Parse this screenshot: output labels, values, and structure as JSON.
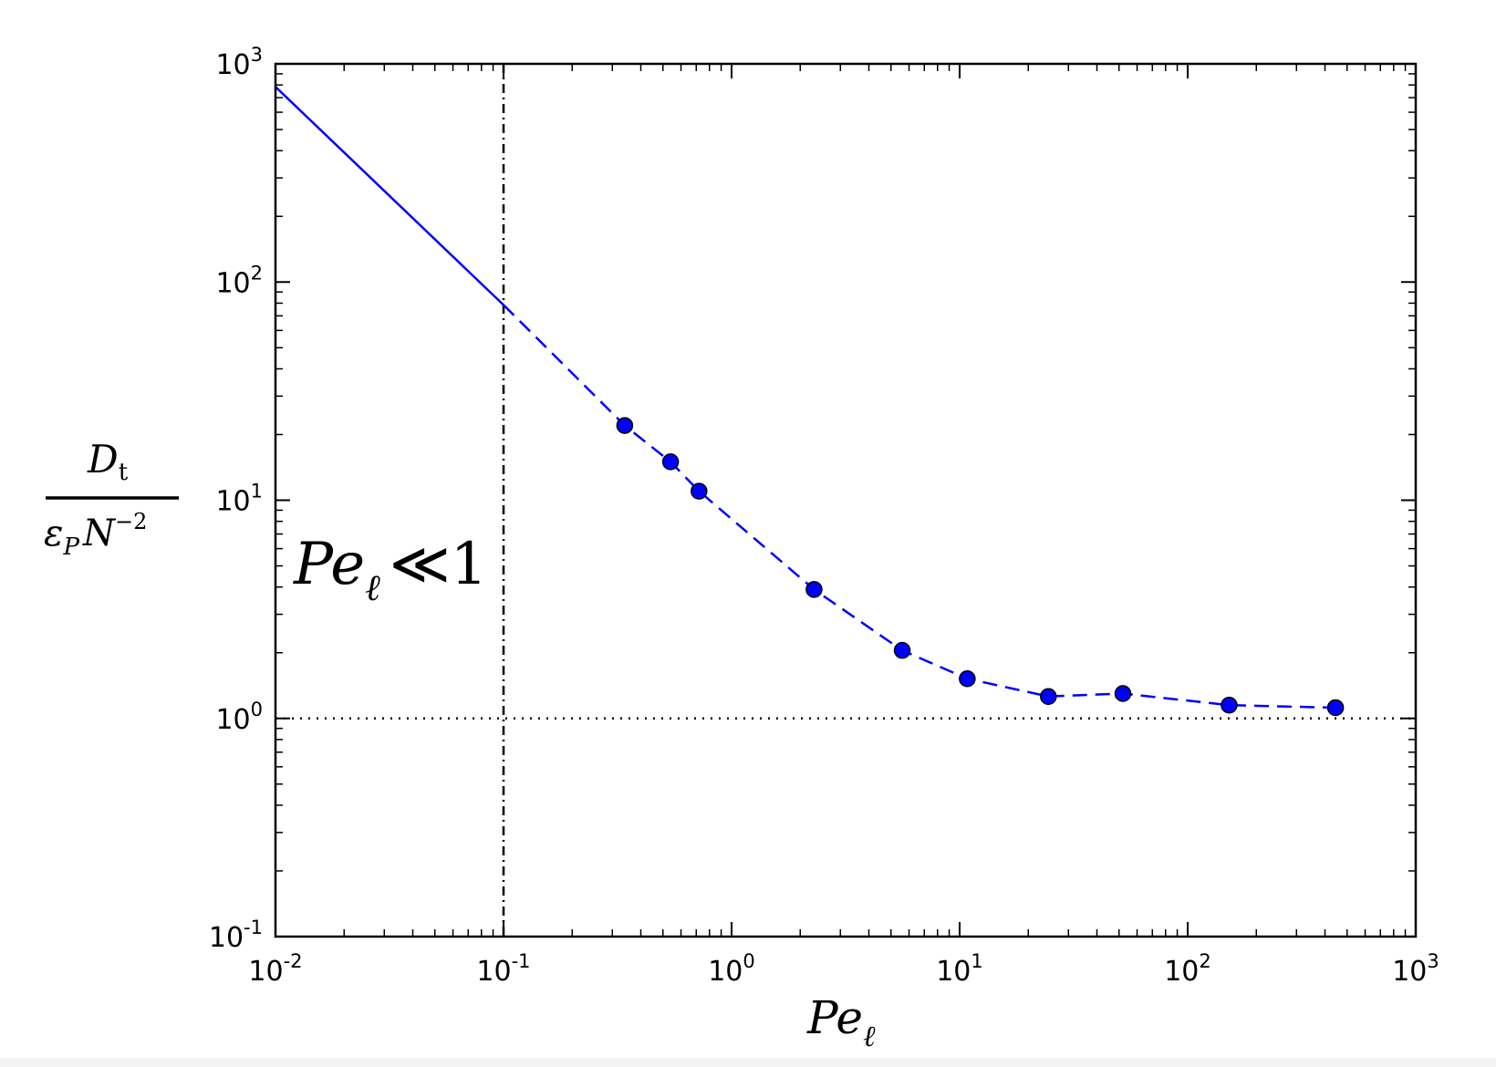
{
  "chart_data": {
    "type": "scatter",
    "x_scale": "log",
    "y_scale": "log",
    "xlim": [
      0.01,
      1000
    ],
    "ylim": [
      0.1,
      1000
    ],
    "grid": false,
    "x_ticks": [
      {
        "base": "10",
        "exp": "-2"
      },
      {
        "base": "10",
        "exp": "-1"
      },
      {
        "base": "10",
        "exp": "0"
      },
      {
        "base": "10",
        "exp": "1"
      },
      {
        "base": "10",
        "exp": "2"
      },
      {
        "base": "10",
        "exp": "3"
      }
    ],
    "y_ticks": [
      {
        "base": "10",
        "exp": "-1"
      },
      {
        "base": "10",
        "exp": "0"
      },
      {
        "base": "10",
        "exp": "1"
      },
      {
        "base": "10",
        "exp": "2"
      },
      {
        "base": "10",
        "exp": "3"
      }
    ],
    "xlabel": {
      "main": "Pe",
      "sub": "ℓ"
    },
    "ylabel": {
      "numerator": {
        "main": "D",
        "sub": "t"
      },
      "denominator": {
        "eps": "ε",
        "eps_sub": "P",
        "n": "N",
        "n_sup": "−2"
      }
    },
    "annotation": {
      "main": "Pe",
      "sub": "ℓ",
      "rel": "≪1"
    },
    "annotation_position": "left, just above 10^1",
    "points": [
      {
        "x": 0.34,
        "y": 22
      },
      {
        "x": 0.54,
        "y": 15
      },
      {
        "x": 0.72,
        "y": 11
      },
      {
        "x": 2.3,
        "y": 3.9
      },
      {
        "x": 5.6,
        "y": 2.05
      },
      {
        "x": 10.8,
        "y": 1.52
      },
      {
        "x": 24.5,
        "y": 1.26
      },
      {
        "x": 52,
        "y": 1.3
      },
      {
        "x": 152,
        "y": 1.15
      },
      {
        "x": 445,
        "y": 1.12
      }
    ],
    "solid_line": [
      {
        "x": 0.01,
        "y": 785
      },
      {
        "x": 0.1,
        "y": 78.5
      }
    ],
    "dashed_line": [
      {
        "x": 0.1,
        "y": 78.5
      },
      {
        "x": 0.34,
        "y": 22
      },
      {
        "x": 0.54,
        "y": 15
      },
      {
        "x": 0.72,
        "y": 11
      },
      {
        "x": 2.3,
        "y": 3.9
      },
      {
        "x": 5.6,
        "y": 2.05
      },
      {
        "x": 10.8,
        "y": 1.52
      },
      {
        "x": 24.5,
        "y": 1.26
      },
      {
        "x": 52,
        "y": 1.3
      },
      {
        "x": 152,
        "y": 1.15
      },
      {
        "x": 445,
        "y": 1.12
      }
    ],
    "ref_hline_y": 1,
    "ref_vline_x": 0.1,
    "colors": {
      "series": "#0000ff",
      "marker_edge": "#000000",
      "axes": "#000000"
    }
  }
}
